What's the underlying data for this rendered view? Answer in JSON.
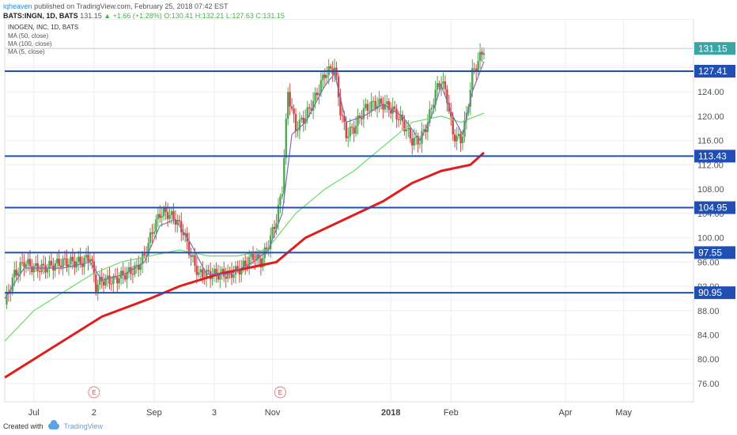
{
  "header": {
    "author": "iqheaven",
    "published": "published on TradingView.com, February 25, 2018 07:42 EST",
    "symbol": "BATS:INGN, 1D, BATS",
    "last": "131.15",
    "change": "+1.66 (+1.28%)",
    "open": "O:130.41",
    "high": "H:132.21",
    "low": "L:127.63",
    "close": "C:131.15"
  },
  "footer": {
    "created": "Created with",
    "brand": "TradingView"
  },
  "chart_data": {
    "type": "candlestick",
    "title": "INOGEN, INC, 1D, BATS",
    "legend": [
      "MA (50, close)",
      "MA (100, close)",
      "MA (5, close)"
    ],
    "ylim": [
      73,
      136
    ],
    "yticks": [
      "76.00",
      "80.00",
      "84.00",
      "88.00",
      "92.00",
      "96.00",
      "100.00",
      "104.00",
      "108.00",
      "112.00",
      "116.00",
      "120.00",
      "124.00",
      "128.00"
    ],
    "xticks": [
      "Jul",
      "2",
      "Sep",
      "3",
      "Nov",
      "2018",
      "Feb",
      "Apr",
      "May"
    ],
    "xtick_days": [
      15,
      46,
      77,
      108,
      138,
      199,
      230,
      289,
      319
    ],
    "x_range_days": [
      0,
      355
    ],
    "last_price": "131.15",
    "levels": [
      {
        "value": 127.41,
        "label": "127.41"
      },
      {
        "value": 113.43,
        "label": "113.43"
      },
      {
        "value": 104.95,
        "label": "104.95"
      },
      {
        "value": 97.55,
        "label": "97.55"
      },
      {
        "value": 90.95,
        "label": "90.95"
      }
    ],
    "earnings_markers": [
      {
        "label": "E",
        "day": 46
      },
      {
        "label": "E",
        "day": 142
      }
    ],
    "close_path": [
      [
        0,
        89
      ],
      [
        5,
        94
      ],
      [
        10,
        96
      ],
      [
        15,
        95
      ],
      [
        20,
        95
      ],
      [
        30,
        96
      ],
      [
        40,
        96
      ],
      [
        44,
        97
      ],
      [
        47,
        92
      ],
      [
        50,
        93
      ],
      [
        56,
        93
      ],
      [
        62,
        94
      ],
      [
        68,
        95
      ],
      [
        72,
        97
      ],
      [
        76,
        101
      ],
      [
        80,
        104
      ],
      [
        84,
        104
      ],
      [
        88,
        103
      ],
      [
        92,
        101
      ],
      [
        96,
        97
      ],
      [
        100,
        94
      ],
      [
        104,
        94
      ],
      [
        110,
        94
      ],
      [
        116,
        94
      ],
      [
        122,
        95
      ],
      [
        128,
        97
      ],
      [
        132,
        96
      ],
      [
        136,
        99
      ],
      [
        140,
        103
      ],
      [
        143,
        108
      ],
      [
        146,
        124
      ],
      [
        150,
        118
      ],
      [
        155,
        120
      ],
      [
        160,
        123
      ],
      [
        165,
        127
      ],
      [
        170,
        128
      ],
      [
        173,
        121
      ],
      [
        176,
        117
      ],
      [
        180,
        118
      ],
      [
        185,
        121
      ],
      [
        190,
        122
      ],
      [
        195,
        122
      ],
      [
        200,
        121
      ],
      [
        205,
        119
      ],
      [
        210,
        116
      ],
      [
        214,
        116
      ],
      [
        218,
        119
      ],
      [
        222,
        124
      ],
      [
        225,
        126
      ],
      [
        228,
        123
      ],
      [
        231,
        117
      ],
      [
        235,
        116
      ],
      [
        238,
        120
      ],
      [
        241,
        127
      ],
      [
        244,
        129
      ],
      [
        247,
        131.15
      ]
    ],
    "ma50": [
      [
        0,
        83
      ],
      [
        15,
        88
      ],
      [
        30,
        91
      ],
      [
        45,
        94
      ],
      [
        60,
        96
      ],
      [
        75,
        97
      ],
      [
        90,
        98
      ],
      [
        105,
        97
      ],
      [
        120,
        97
      ],
      [
        135,
        98
      ],
      [
        150,
        104
      ],
      [
        165,
        108
      ],
      [
        180,
        111
      ],
      [
        195,
        115
      ],
      [
        210,
        119
      ],
      [
        225,
        120
      ],
      [
        235,
        119
      ],
      [
        247,
        120.5
      ]
    ],
    "ma100": [
      [
        0,
        77
      ],
      [
        25,
        82
      ],
      [
        50,
        87
      ],
      [
        75,
        90
      ],
      [
        90,
        92
      ],
      [
        110,
        94
      ],
      [
        125,
        95
      ],
      [
        140,
        96
      ],
      [
        155,
        100
      ],
      [
        175,
        103
      ],
      [
        195,
        106
      ],
      [
        210,
        109
      ],
      [
        225,
        111
      ],
      [
        240,
        112
      ],
      [
        247,
        114
      ]
    ],
    "ma5": [
      [
        0,
        90
      ],
      [
        10,
        95
      ],
      [
        30,
        95
      ],
      [
        44,
        96
      ],
      [
        50,
        93
      ],
      [
        62,
        94
      ],
      [
        72,
        96
      ],
      [
        80,
        102
      ],
      [
        88,
        103
      ],
      [
        96,
        99
      ],
      [
        104,
        94
      ],
      [
        116,
        94
      ],
      [
        128,
        96
      ],
      [
        136,
        98
      ],
      [
        143,
        104
      ],
      [
        148,
        117
      ],
      [
        155,
        119
      ],
      [
        165,
        125
      ],
      [
        170,
        127
      ],
      [
        176,
        119
      ],
      [
        185,
        120
      ],
      [
        195,
        122
      ],
      [
        205,
        120
      ],
      [
        214,
        116
      ],
      [
        220,
        120
      ],
      [
        225,
        125
      ],
      [
        231,
        120
      ],
      [
        236,
        117
      ],
      [
        241,
        124
      ],
      [
        247,
        129
      ]
    ]
  }
}
